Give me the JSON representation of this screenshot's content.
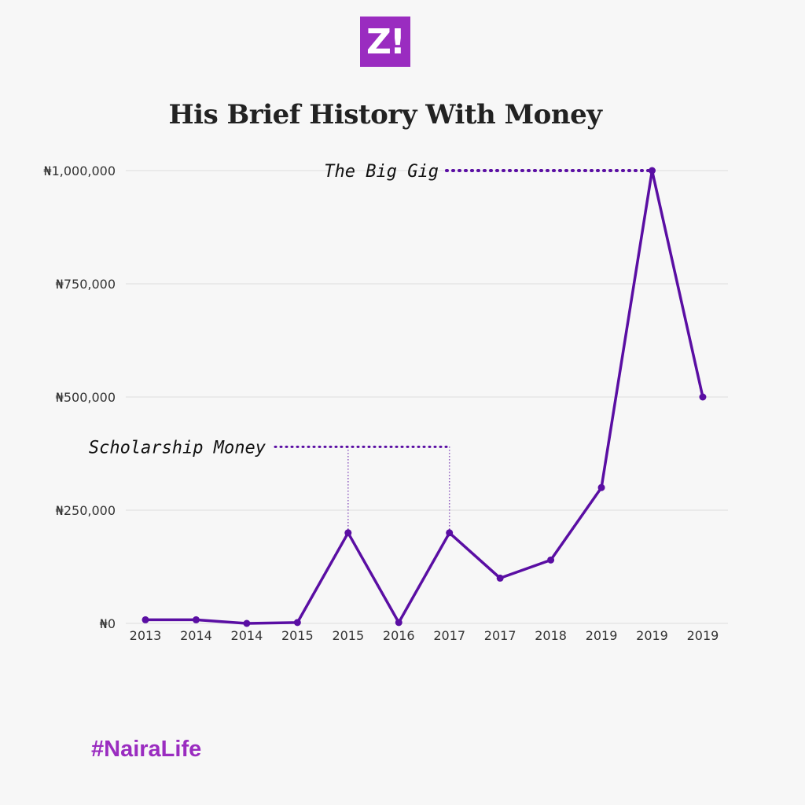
{
  "logo": "Z!",
  "hashtag": "#NairaLife",
  "colors": {
    "line": "#5a0ea3",
    "brand": "#9a2cc0",
    "grid": "#dddddd"
  },
  "chart_data": {
    "type": "line",
    "title": "His Brief History With Money",
    "xlabel": "",
    "ylabel": "",
    "ylim": [
      0,
      1000000
    ],
    "yticks": [
      0,
      250000,
      500000,
      750000,
      1000000
    ],
    "ytick_labels": [
      "₦0",
      "₦250,000",
      "₦500,000",
      "₦750,000",
      "₦1,000,000"
    ],
    "categories": [
      "2013",
      "2014",
      "2014",
      "2015",
      "2015",
      "2016",
      "2017",
      "2017",
      "2018",
      "2019",
      "2019",
      "2019"
    ],
    "values": [
      8000,
      8000,
      0,
      2000,
      200000,
      2000,
      200000,
      100000,
      140000,
      300000,
      1000000,
      500000
    ],
    "grid": true,
    "annotations": [
      {
        "text": "Scholarship Money",
        "points": [
          4,
          6
        ],
        "level": 390000
      },
      {
        "text": "The Big Gig",
        "points": [
          10
        ],
        "level": 1000000
      }
    ]
  }
}
